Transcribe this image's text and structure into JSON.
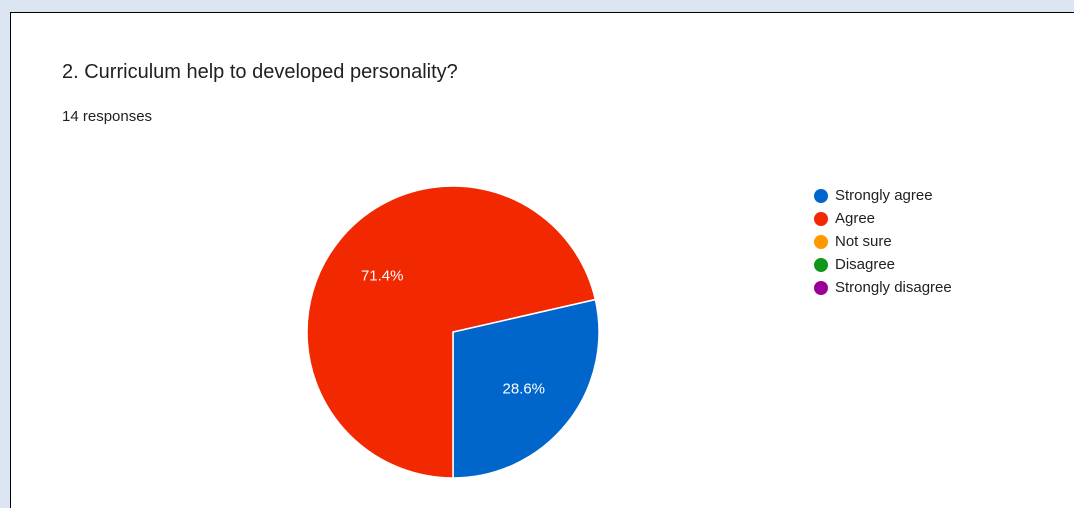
{
  "question": {
    "title": "2. Curriculum help to developed personality?",
    "responses": "14 responses"
  },
  "colors": {
    "background": "#dce6f2",
    "card": "#ffffff"
  },
  "chart_data": {
    "type": "pie",
    "title": "2. Curriculum help to developed personality?",
    "total_responses": 14,
    "categories": [
      "Strongly agree",
      "Agree",
      "Not sure",
      "Disagree",
      "Strongly disagree"
    ],
    "values": [
      4,
      10,
      0,
      0,
      0
    ],
    "percent_labels": [
      "28.6%",
      "71.4%",
      "",
      "",
      ""
    ],
    "colors": [
      "#0066cc",
      "#f22800",
      "#ff9900",
      "#109618",
      "#990099"
    ],
    "start_angle_deg": 90,
    "legend_position": "right"
  }
}
